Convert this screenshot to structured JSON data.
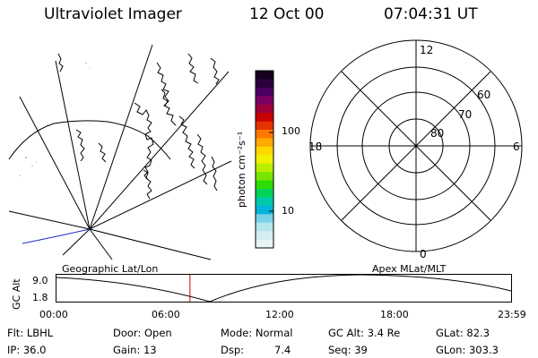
{
  "header": {
    "title": "Ultraviolet Imager",
    "date": "12 Oct 00",
    "time": "07:04:31 UT"
  },
  "colorbar": {
    "unit_label": "photon cm⁻²s⁻¹",
    "ticks": [
      "100",
      "10"
    ],
    "colors": [
      "#14001e",
      "#2a003c",
      "#4a0060",
      "#7a0060",
      "#a0003c",
      "#c80000",
      "#e63200",
      "#ff7800",
      "#ffaa00",
      "#ffd700",
      "#f0f000",
      "#b8f000",
      "#78e600",
      "#2ddc00",
      "#00d25a",
      "#00c8aa",
      "#00b4dc",
      "#78d2e6",
      "#b4e6ee",
      "#d2eef2",
      "#e6f4f6"
    ]
  },
  "geo_panel": {
    "caption": "Geographic Lat/Lon"
  },
  "polar_plot": {
    "caption": "Apex MLat/MLT",
    "mlt_labels": {
      "top": "12",
      "right": "6",
      "bottom": "0",
      "left": "18"
    },
    "lat_labels": [
      "60",
      "70",
      "80"
    ]
  },
  "altitude_plot": {
    "ylabel": "GC Alt",
    "ymax": "9.0",
    "ymin": "1.8",
    "x_ticks": [
      "00:00",
      "06:00",
      "12:00",
      "18:00",
      "23:59"
    ],
    "current_time_hours": 7.075,
    "marker_color": "#d00000"
  },
  "info_panel": {
    "flt": "Flt: LBHL",
    "ip": "IP: 36.0",
    "door": "Door: Open",
    "gain": "Gain: 13",
    "mode": "Mode: Normal",
    "dsp_label": "Dsp:",
    "dsp_value": "7.4",
    "gc_alt": "GC Alt: 3.4 Re",
    "seq": "Seq: 39",
    "glat": "GLat: 82.3",
    "glon": "GLon: 303.3"
  }
}
